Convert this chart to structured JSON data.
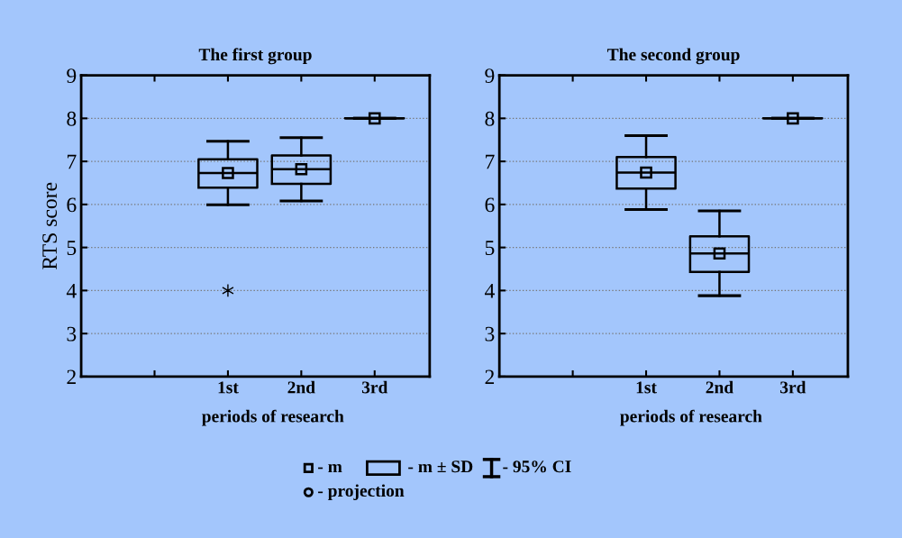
{
  "chart_data": [
    {
      "type": "box",
      "title": "The first group",
      "xlabel": "periods of research",
      "ylabel": "RTS score",
      "categories": [
        null,
        "1st",
        "2nd",
        "3rd"
      ],
      "ylim": [
        2,
        9
      ],
      "yticks": [
        2,
        3,
        4,
        5,
        6,
        7,
        8,
        9
      ],
      "grid": "y",
      "color": "#000000",
      "boxes": [
        null,
        {
          "low": 5.99,
          "q1": 6.39,
          "median": 6.73,
          "mean": 6.73,
          "q3": 7.05,
          "high": 7.47,
          "outliers": [
            4.0
          ]
        },
        {
          "low": 6.08,
          "q1": 6.48,
          "median": 6.82,
          "mean": 6.82,
          "q3": 7.14,
          "high": 7.55
        },
        {
          "low": 8.0,
          "q1": 8.0,
          "median": 8.0,
          "mean": 8.0,
          "q3": 8.0,
          "high": 8.0
        }
      ],
      "annotations": [
        "- m",
        "- m ± SD",
        "- 95% CI",
        "- projection"
      ]
    },
    {
      "type": "box",
      "title": "The second group",
      "xlabel": "periods of research",
      "categories": [
        null,
        "1st",
        "2nd",
        "3rd"
      ],
      "ylim": [
        2,
        9
      ],
      "yticks": [
        2,
        3,
        4,
        5,
        6,
        7,
        8,
        9
      ],
      "grid": "y",
      "color": "#000000",
      "boxes": [
        null,
        {
          "low": 5.88,
          "q1": 6.37,
          "median": 6.74,
          "mean": 6.74,
          "q3": 7.1,
          "high": 7.6
        },
        {
          "low": 3.88,
          "q1": 4.43,
          "median": 4.86,
          "mean": 4.86,
          "q3": 5.26,
          "high": 5.85
        },
        {
          "low": 8.0,
          "q1": 8.0,
          "median": 8.0,
          "mean": 8.0,
          "q3": 8.0,
          "high": 8.0
        }
      ]
    }
  ]
}
